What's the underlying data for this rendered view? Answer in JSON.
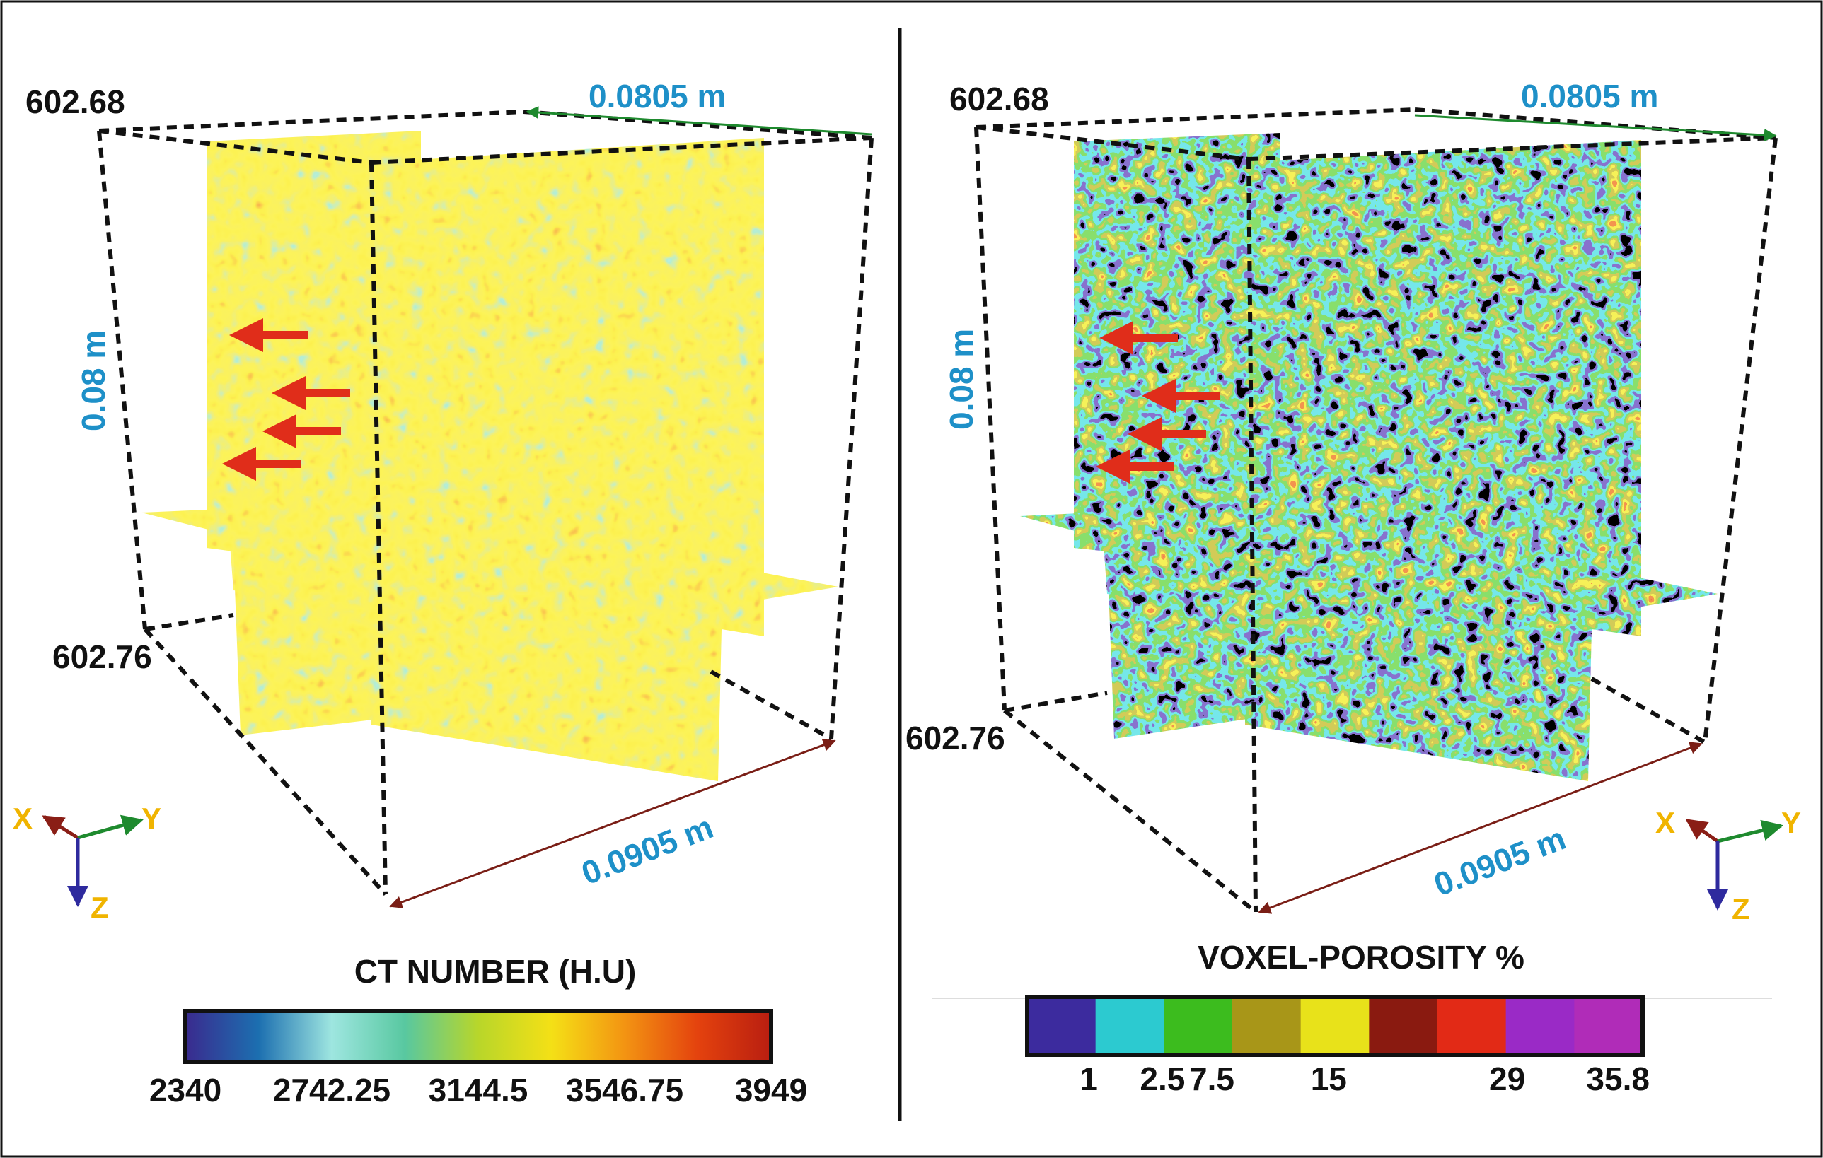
{
  "left_panel": {
    "depth_top": "602.68",
    "depth_bottom": "602.76",
    "width_label": "0.0805 m",
    "height_label": "0.08 m",
    "depth_label": "0.0905 m",
    "legend_title": "CT NUMBER (H.U)",
    "legend_ticks": [
      "2340",
      "2742.25",
      "3144.5",
      "3546.75",
      "3949"
    ],
    "colormap": [
      "#3a2a8e",
      "#1c6fb0",
      "#9ee6e0",
      "#58c8a0",
      "#b8d62a",
      "#f4e016",
      "#f39412",
      "#e4420e",
      "#b81e10"
    ]
  },
  "right_panel": {
    "depth_top": "602.68",
    "depth_bottom": "602.76",
    "width_label": "0.0805 m",
    "height_label": "0.08 m",
    "depth_label": "0.0905 m",
    "legend_title": "VOXEL-POROSITY %",
    "legend_ticks": [
      "1",
      "2.5",
      "7.5",
      "15",
      "29",
      "35.8"
    ],
    "colormap": [
      "#3c2b9e",
      "#2ccad0",
      "#3cbc1e",
      "#a89618",
      "#e8e21a",
      "#8a1a10",
      "#e22a16",
      "#9a2ac6",
      "#b02cb8"
    ]
  },
  "axes_triad": {
    "x": "X",
    "y": "Y",
    "z": "Z"
  },
  "colors": {
    "dimension_text": "#1e90c8",
    "arrow_red": "#e02d1a",
    "arrow_green": "#1e8a2e",
    "arrow_brown": "#7a1e16",
    "triad_x": "#8a1e16",
    "triad_y": "#1e8a2e",
    "triad_z": "#2e2a9e",
    "triad_text": "#f0b400"
  }
}
